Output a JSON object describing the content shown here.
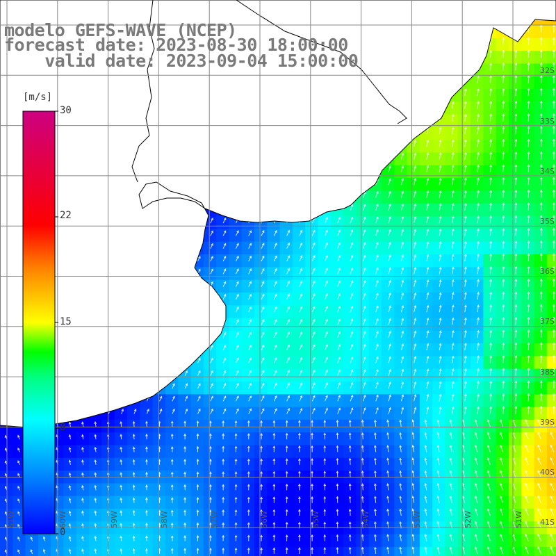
{
  "titles": {
    "line1": "modelo GEFS-WAVE (NCEP)",
    "line2": "forecast date: 2023-08-30 18:00:00",
    "line3": "    valid date: 2023-09-04 15:00:00"
  },
  "colorbar": {
    "units": "[m/s]",
    "ticks": [
      "30",
      "22",
      "15",
      "8",
      "0"
    ],
    "colors": [
      "#0000ff",
      "#0080ff",
      "#00ffff",
      "#00ff80",
      "#00ff00",
      "#ffff00",
      "#ff8000",
      "#ff0000",
      "#cc0080"
    ]
  },
  "lat_labels": [
    "32S",
    "33S",
    "34S",
    "35S",
    "36S",
    "37S",
    "38S",
    "39S",
    "40S",
    "41S"
  ],
  "lon_labels": [
    "61W",
    "60W",
    "59W",
    "58W",
    "57W",
    "56W",
    "55W",
    "54W",
    "53W",
    "52W",
    "51W"
  ],
  "colors": {
    "land": "#ffffff",
    "coast": "#000000",
    "grid": "#888888",
    "arrow": "#ffffff",
    "title": "#7a7a7a"
  }
}
